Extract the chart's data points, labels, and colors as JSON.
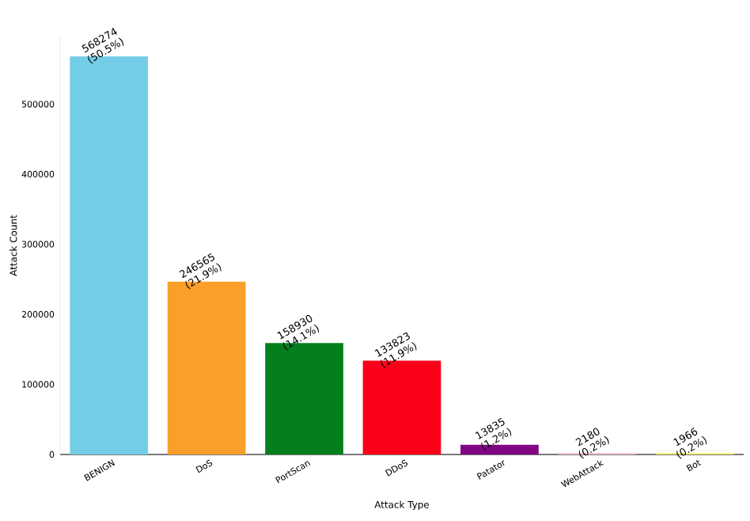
{
  "chart_data": {
    "type": "bar",
    "xlabel": "Attack Type",
    "ylabel": "Attack Count",
    "categories": [
      "BENIGN",
      "DoS",
      "PortScan",
      "DDoS",
      "Patator",
      "WebAttack",
      "Bot"
    ],
    "values": [
      568274,
      246565,
      158930,
      133823,
      13835,
      2180,
      1966
    ],
    "colors": [
      "#74cde6",
      "#fb9f2a",
      "#047f1e",
      "#fb0019",
      "#800683",
      "#f8c6d0",
      "#f5f06a"
    ],
    "value_labels": [
      "568274 (50.5%)",
      "246565 (21.9%)",
      "158930 (14.1%)",
      "133823 (11.9%)",
      "13835 (1.2%)",
      "2180 (0.2%)",
      "1966 (0.2%)"
    ],
    "ylim": [
      0,
      596688
    ],
    "yticks": [
      0,
      100000,
      200000,
      300000,
      400000,
      500000
    ],
    "grid": false
  }
}
